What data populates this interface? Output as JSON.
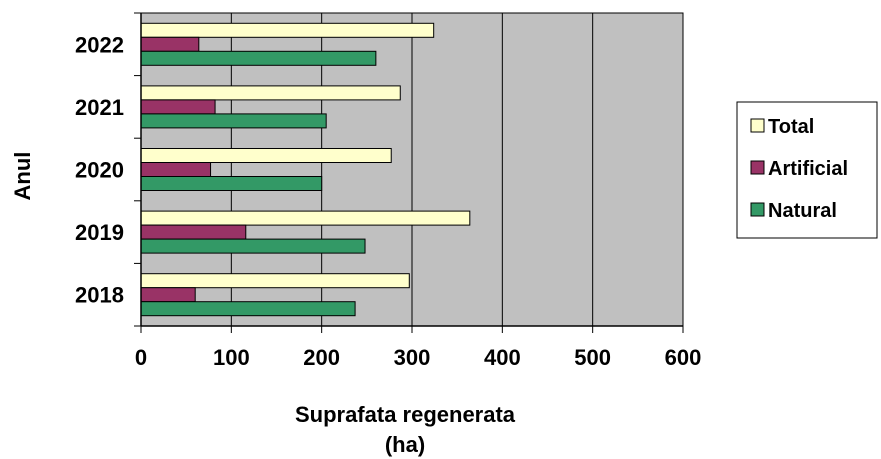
{
  "chart_data": {
    "type": "bar",
    "orientation": "horizontal",
    "categories": [
      "2018",
      "2019",
      "2020",
      "2021",
      "2022"
    ],
    "series": [
      {
        "name": "Total",
        "values": [
          297,
          364,
          277,
          287,
          324
        ],
        "color": "#FFFFCC"
      },
      {
        "name": "Artificial",
        "values": [
          60,
          116,
          77,
          82,
          64
        ],
        "color": "#993366"
      },
      {
        "name": "Natural",
        "values": [
          237,
          248,
          200,
          205,
          260
        ],
        "color": "#339966"
      }
    ],
    "xlabel": [
      "Suprafata regenerata",
      "(ha)"
    ],
    "ylabel": "Anul",
    "xlim": [
      0,
      600
    ],
    "xticks": [
      0,
      100,
      200,
      300,
      400,
      500,
      600
    ],
    "grid": true,
    "plot_background": "#C0C0C0",
    "legend_position": "right",
    "legend_order": [
      "Total",
      "Artificial",
      "Natural"
    ]
  }
}
